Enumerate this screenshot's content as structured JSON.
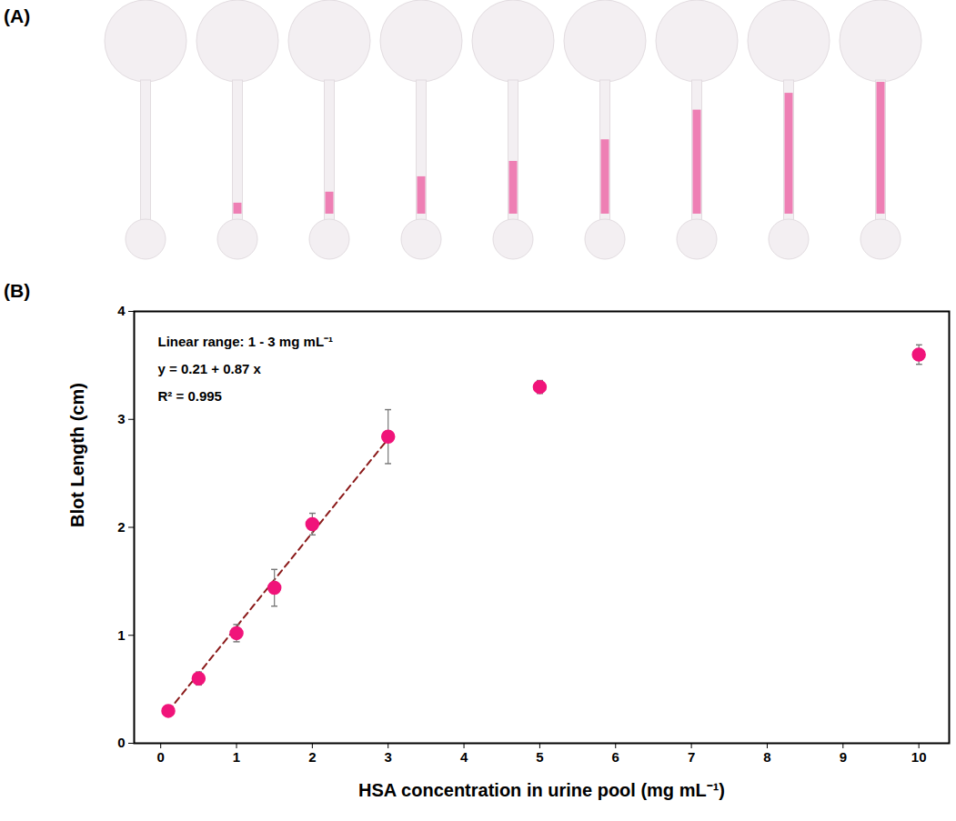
{
  "chart_data": {
    "type": "scatter",
    "panel_labels": [
      "(A)",
      "(B)"
    ],
    "x_label": "HSA concentration in urine pool (mg mL⁻¹)",
    "y_label": "Blot Length (cm)",
    "annotations": [
      "Linear range: 1 - 3 mg mL⁻¹",
      "y = 0.21 + 0.87 x",
      "R² = 0.995"
    ],
    "x": [
      0.1,
      0.5,
      1,
      1.5,
      2,
      3,
      5,
      10
    ],
    "values": [
      0.3,
      0.6,
      1.02,
      1.44,
      2.03,
      2.84,
      3.3,
      3.6
    ],
    "errors": [
      0.02,
      0.06,
      0.08,
      0.17,
      0.1,
      0.25,
      0.06,
      0.09
    ],
    "color": "#f0147a",
    "marker": "circle",
    "fit": {
      "x": [
        0.1,
        3
      ],
      "values": [
        0.297,
        2.82
      ],
      "line_style": "dashed",
      "color": "#8b1a1a"
    },
    "xlim": [
      -0.35,
      10.4
    ],
    "xticks": [
      0,
      1,
      2,
      3,
      4,
      5,
      6,
      7,
      8,
      9,
      10
    ],
    "ylim": [
      0,
      4
    ],
    "yticks": [
      0,
      1,
      2,
      3,
      4
    ],
    "grid": false
  }
}
